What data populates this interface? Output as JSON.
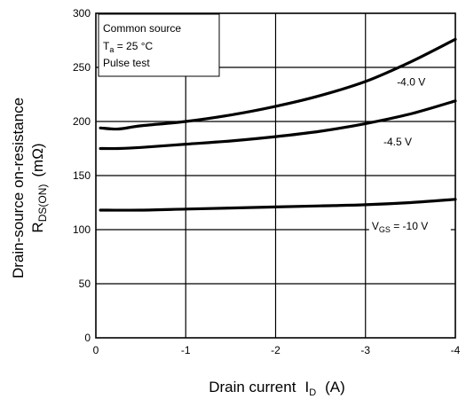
{
  "chart_data": {
    "type": "line",
    "xlabel": "Drain current",
    "xlabel_symbol": "I",
    "xlabel_sub": "D",
    "xlabel_unit": "(A)",
    "ylabel": "Drain-source on-resistance",
    "ylabel_symbol": "R",
    "ylabel_sub": "DS(ON)",
    "ylabel_unit": "(mΩ)",
    "xlim": [
      0,
      -4
    ],
    "ylim": [
      0,
      300
    ],
    "x_ticks": [
      0,
      -1,
      -2,
      -3,
      -4
    ],
    "x_tick_labels": [
      "0",
      "-1",
      "-2",
      "-3",
      "-4"
    ],
    "y_ticks": [
      0,
      50,
      100,
      150,
      200,
      250,
      300
    ],
    "y_tick_labels": [
      "0",
      "50",
      "100",
      "150",
      "200",
      "250",
      "300"
    ],
    "grid": true,
    "conditions": {
      "line1": "Common source",
      "line2_symbol": "T",
      "line2_sub": "a",
      "line2_rest": " = 25 °C",
      "line3": "Pulse test"
    },
    "series": [
      {
        "name": "-4.0 V",
        "label_text": "-4.0 V",
        "label_at": [
          -3.35,
          233
        ],
        "x": [
          -0.05,
          -0.25,
          -0.5,
          -1.0,
          -1.5,
          -2.0,
          -2.5,
          -3.0,
          -3.5,
          -4.0
        ],
        "y": [
          194,
          193,
          196,
          200,
          206,
          214,
          224,
          237,
          255,
          276
        ]
      },
      {
        "name": "-4.5 V",
        "label_text": "-4.5 V",
        "label_at": [
          -3.2,
          178
        ],
        "x": [
          -0.05,
          -0.25,
          -0.5,
          -1.0,
          -1.5,
          -2.0,
          -2.5,
          -3.0,
          -3.5,
          -4.0
        ],
        "y": [
          175,
          175,
          176,
          179,
          182,
          186,
          191,
          198,
          207,
          219
        ]
      },
      {
        "name": "-10 V",
        "label_prefix": "V",
        "label_sub": "GS",
        "label_rest": " = -10 V",
        "label_at": [
          -3.07,
          100
        ],
        "x": [
          -0.05,
          -0.5,
          -1.0,
          -1.5,
          -2.0,
          -2.5,
          -3.0,
          -3.5,
          -4.0
        ],
        "y": [
          118,
          118,
          119,
          120,
          121,
          122,
          123,
          125,
          128
        ]
      }
    ]
  }
}
